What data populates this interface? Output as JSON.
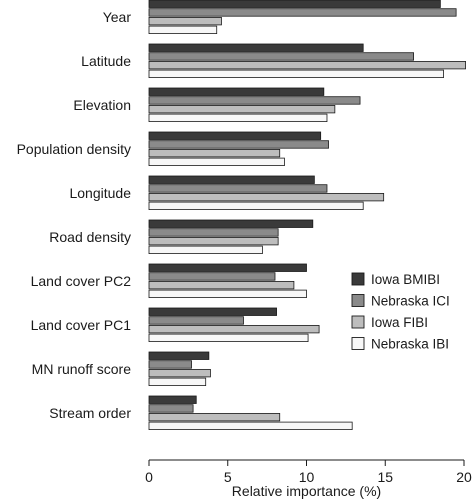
{
  "chart_data": {
    "type": "bar",
    "orientation": "horizontal",
    "title": "",
    "xlabel": "Relative importance (%)",
    "ylabel": "",
    "xlim": [
      0,
      20
    ],
    "xticks": [
      0,
      5,
      10,
      15,
      20
    ],
    "legend_position": "right-lower",
    "categories": [
      "Year",
      "Latitude",
      "Elevation",
      "Population density",
      "Longitude",
      "Road density",
      "Land cover PC2",
      "Land cover PC1",
      "MN runoff score",
      "Stream order"
    ],
    "series": [
      {
        "name": "Iowa BMIBI",
        "color": "#3a3a3a",
        "values": [
          18.5,
          13.6,
          11.1,
          10.9,
          10.5,
          10.4,
          10.0,
          8.1,
          3.8,
          3.0
        ]
      },
      {
        "name": "Nebraska ICI",
        "color": "#8a8a8a",
        "values": [
          19.5,
          16.8,
          13.4,
          11.4,
          11.3,
          8.2,
          8.0,
          6.0,
          2.7,
          2.8
        ]
      },
      {
        "name": "Iowa FIBI",
        "color": "#bdbdbd",
        "values": [
          4.6,
          20.1,
          11.8,
          8.3,
          14.9,
          8.2,
          9.2,
          10.8,
          3.9,
          8.3
        ]
      },
      {
        "name": "Nebraska IBI",
        "color": "#f7f7f7",
        "values": [
          4.3,
          18.7,
          11.3,
          8.6,
          13.6,
          7.2,
          10.0,
          10.1,
          3.6,
          12.9
        ]
      }
    ]
  }
}
